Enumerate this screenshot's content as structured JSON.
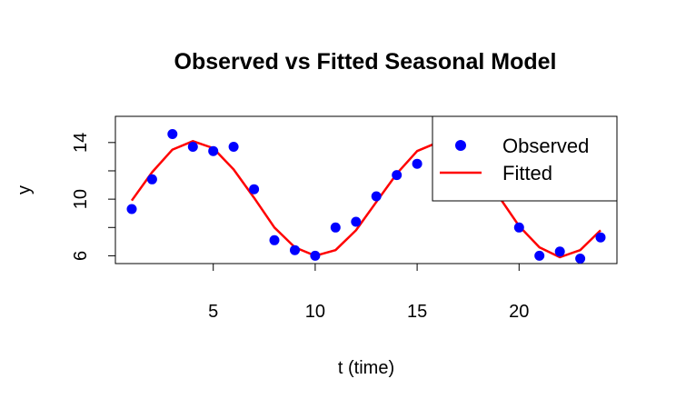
{
  "chart_data": {
    "type": "line",
    "title": "Observed vs Fitted Seasonal Model",
    "xlabel": "t (time)",
    "ylabel": "y",
    "xlim": [
      0.2,
      24.8
    ],
    "ylim": [
      5.45,
      15.85
    ],
    "x_ticks": [
      5,
      10,
      15,
      20
    ],
    "y_ticks": [
      6,
      10,
      14
    ],
    "y_minor_ticks": [
      8,
      12
    ],
    "grid": false,
    "legend_position": "top-right",
    "series": [
      {
        "name": "Observed",
        "kind": "points",
        "color": "#0000FF",
        "x": [
          1,
          2,
          3,
          4,
          5,
          6,
          7,
          8,
          9,
          10,
          11,
          12,
          13,
          14,
          15,
          16,
          17,
          18,
          19,
          20,
          21,
          22,
          23,
          24
        ],
        "y": [
          9.3,
          11.4,
          14.6,
          13.7,
          13.4,
          13.7,
          10.7,
          7.1,
          6.4,
          6.0,
          8.0,
          8.4,
          10.2,
          11.7,
          12.5,
          15.4,
          14.0,
          10.2,
          10.5,
          8.0,
          6.0,
          6.3,
          5.8,
          7.3
        ]
      },
      {
        "name": "Fitted",
        "kind": "line",
        "color": "#FF0000",
        "x": [
          1,
          2,
          3,
          4,
          5,
          6,
          7,
          8,
          9,
          10,
          11,
          12,
          13,
          14,
          15,
          16,
          17,
          18,
          19,
          20,
          21,
          22,
          23,
          24
        ],
        "y": [
          9.9,
          11.9,
          13.5,
          14.1,
          13.6,
          12.1,
          10.1,
          8.0,
          6.6,
          6.0,
          6.4,
          7.8,
          9.8,
          11.8,
          13.4,
          14.0,
          13.6,
          12.2,
          10.2,
          8.1,
          6.6,
          5.9,
          6.4,
          7.8
        ]
      }
    ]
  }
}
